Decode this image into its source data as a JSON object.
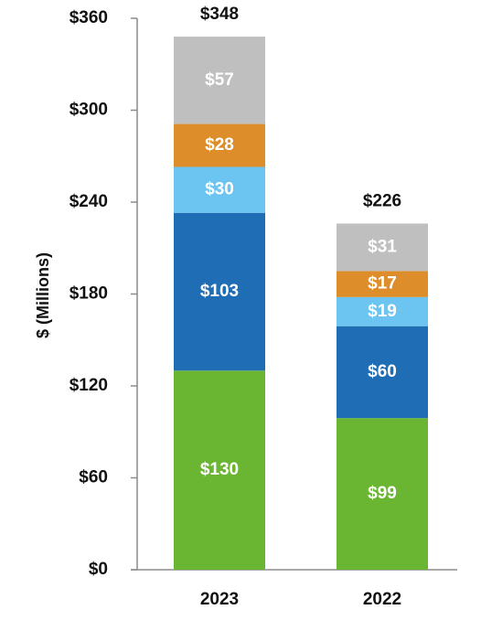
{
  "chart_data": {
    "type": "bar",
    "stacked": true,
    "ylabel": "$ (Millions)",
    "ylim": [
      0,
      360
    ],
    "yticks": [
      0,
      60,
      120,
      180,
      240,
      300,
      360
    ],
    "ytick_labels": [
      "$0",
      "$60",
      "$120",
      "$180",
      "$240",
      "$300",
      "$360"
    ],
    "categories": [
      "2023",
      "2022"
    ],
    "totals": [
      348,
      226
    ],
    "total_labels": [
      "$348",
      "$226"
    ],
    "series": [
      {
        "color": "#6ab632",
        "values": [
          130,
          99
        ],
        "labels": [
          "$130",
          "$99"
        ]
      },
      {
        "color": "#1f6db5",
        "values": [
          103,
          60
        ],
        "labels": [
          "$103",
          "$60"
        ]
      },
      {
        "color": "#6cc5f0",
        "values": [
          30,
          19
        ],
        "labels": [
          "$30",
          "$19"
        ]
      },
      {
        "color": "#dd8e2a",
        "values": [
          28,
          17
        ],
        "labels": [
          "$28",
          "$17"
        ]
      },
      {
        "color": "#bfbfbf",
        "values": [
          57,
          31
        ],
        "labels": [
          "$57",
          "$31"
        ]
      }
    ]
  }
}
